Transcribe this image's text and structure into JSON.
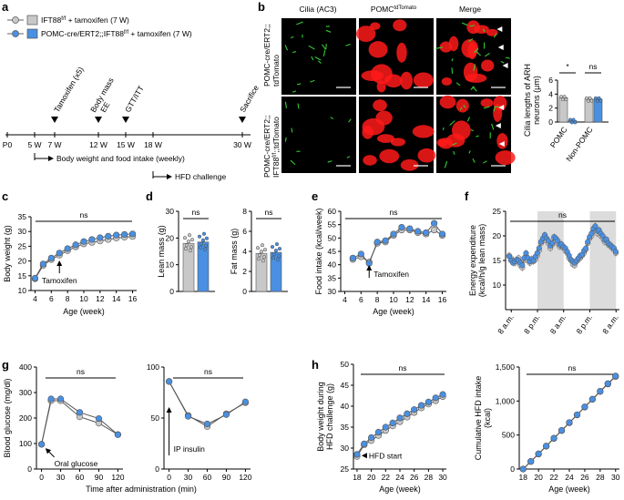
{
  "colors": {
    "gray": "#c8c8c8",
    "blue": "#4a90e2",
    "red": "#ff1a1a",
    "green": "#33cc33"
  },
  "panels": {
    "a": "a",
    "b": "b",
    "c": "c",
    "d": "d",
    "e": "e",
    "f": "f",
    "g": "g",
    "h": "h"
  },
  "legend": {
    "ctrl_prefix": "IFT88",
    "ctrl_sup": "f/f",
    "ctrl_suffix": " + tamoxifen (7 W)",
    "ko_prefix": "POMC-cre/ERT2;;IFT88",
    "ko_sup": "f/f",
    "ko_suffix": " + tamoxifen (7 W)"
  },
  "timeline": {
    "ticks": [
      "P0",
      "5 W",
      "7 W",
      "12 W",
      "15 W",
      "18 W",
      "30 W"
    ],
    "events": [
      "Tamoxifen (x5)",
      "Body mass",
      "EE",
      "GTT/ITT",
      "Sacrifice"
    ],
    "bar1": "Body weight and food intake (weekly)",
    "bar2": "HFD challenge"
  },
  "micro": {
    "col1": "Cilia (AC3)",
    "col2_prefix": "POMC",
    "col2_sup": "tdTomato",
    "col3": "Merge",
    "row1_l1": "POMC-cre/ERT2;;",
    "row1_l2": "tdTomato",
    "row2_l1": "POMC-cre/ERT2;;",
    "row2_l2a": "IFT88",
    "row2_l2sup": "f/f",
    "row2_l2b": ";;tdTomato"
  },
  "chart_data": [
    {
      "id": "b_cilia",
      "type": "bar",
      "ylabel_1": "Cilia lengths of ARH",
      "ylabel_2": "neurons (μm)",
      "ylim": [
        0,
        6
      ],
      "yticks": [
        "0",
        "2",
        "4",
        "6"
      ],
      "categories": [
        "POMC",
        "Non-POMC"
      ],
      "series": [
        {
          "name": "Control",
          "values": [
            3.5,
            3.3
          ]
        },
        {
          "name": "KO",
          "values": [
            0.2,
            3.3
          ]
        }
      ],
      "sig": [
        "*",
        "ns"
      ]
    },
    {
      "id": "c_bw",
      "type": "line",
      "xlabel": "Age (week)",
      "ylabel": "Body weight (g)",
      "xlim": [
        3.5,
        16.5
      ],
      "ylim": [
        10,
        35
      ],
      "xticks": [
        "4",
        "6",
        "8",
        "10",
        "12",
        "14",
        "16"
      ],
      "yticks": [
        "10",
        "15",
        "20",
        "25",
        "30",
        "35"
      ],
      "x": [
        4,
        5,
        6,
        7,
        8,
        9,
        10,
        11,
        12,
        13,
        14,
        15,
        16
      ],
      "series": [
        {
          "name": "Control",
          "values": [
            14,
            18.5,
            20.5,
            22,
            23.5,
            24.8,
            25.8,
            26.3,
            26.8,
            27.3,
            27.8,
            28.1,
            28.3
          ]
        },
        {
          "name": "KO",
          "values": [
            14.2,
            19,
            21,
            22.7,
            24.2,
            25.5,
            26.6,
            27.3,
            27.9,
            28.4,
            28.8,
            29,
            29.2
          ]
        }
      ],
      "annotation": "Tamoxifen",
      "ns": "ns"
    },
    {
      "id": "d_lean",
      "type": "bar",
      "ylabel": "Lean mass (g)",
      "ylim": [
        0,
        30
      ],
      "yticks": [
        "0",
        "10",
        "20",
        "30"
      ],
      "values": [
        18,
        18.5
      ],
      "ns": "ns"
    },
    {
      "id": "d_fat",
      "type": "bar",
      "ylabel": "Fat mass (g)",
      "ylim": [
        0,
        8
      ],
      "yticks": [
        "0",
        "2",
        "4",
        "6",
        "8"
      ],
      "values": [
        3.8,
        3.9
      ],
      "ns": "ns"
    },
    {
      "id": "e_food",
      "type": "line",
      "xlabel": "Age (week)",
      "ylabel": "Food intake (kcal/week)",
      "xlim": [
        3.5,
        16.5
      ],
      "ylim": [
        30,
        60
      ],
      "xticks": [
        "4",
        "6",
        "8",
        "10",
        "12",
        "14",
        "16"
      ],
      "yticks": [
        "30",
        "35",
        "40",
        "45",
        "50",
        "55",
        "60"
      ],
      "x": [
        5,
        6,
        7,
        8,
        9,
        10,
        11,
        12,
        13,
        14,
        15,
        16
      ],
      "series": [
        {
          "name": "Control",
          "values": [
            42,
            43,
            41,
            48,
            48.5,
            51,
            53,
            53,
            52,
            51.5,
            53,
            51
          ]
        },
        {
          "name": "KO",
          "values": [
            42.5,
            44,
            40.5,
            48.5,
            49,
            51.5,
            54,
            53.5,
            52.5,
            52,
            55.5,
            51.5
          ]
        }
      ],
      "annotation": "Tamoxifen",
      "ns": "ns"
    },
    {
      "id": "f_ee",
      "type": "line",
      "ylabel_1": "Energy expenditure",
      "ylabel_2": "(kcal/h/g lean mass)",
      "ylim": [
        5,
        25
      ],
      "yticks": [
        "10",
        "15",
        "20",
        "25"
      ],
      "xticks": [
        "8 a.m.",
        "8 p.m.",
        "8 a.m.",
        "8 p.m.",
        "8 a.m."
      ],
      "series": [
        {
          "name": "Control",
          "values": [
            16,
            15.5,
            15,
            14.5,
            14.8,
            15.5,
            14,
            13.5,
            15,
            16,
            15,
            14.5,
            15,
            14.8,
            15.2,
            16,
            17,
            18.5,
            19,
            20,
            19,
            18.5,
            17.5,
            18.2,
            19.5,
            19,
            18.5,
            17.8,
            18,
            17.5,
            17,
            16.5,
            15.5,
            15,
            14.2,
            14,
            14.8,
            15.2,
            15.5,
            16,
            16.5,
            17.2,
            18.5,
            19.5,
            20,
            21,
            21.5,
            20.5,
            21,
            20,
            19.5,
            18.8,
            19,
            18.2,
            18,
            17.5,
            17.2,
            16.5
          ]
        },
        {
          "name": "KO",
          "values": [
            15.8,
            15,
            14.5,
            14.8,
            15.2,
            15,
            14.5,
            14,
            15.5,
            16.5,
            15.5,
            14.8,
            15.3,
            15,
            15.8,
            16.5,
            17.5,
            18.8,
            19.5,
            20.2,
            19.5,
            19,
            18,
            18.5,
            19.8,
            19.5,
            19,
            18.2,
            18.3,
            17.8,
            17.5,
            16.8,
            16,
            15.2,
            14.8,
            14.5,
            15,
            15.5,
            16,
            16.2,
            17,
            17.5,
            18.8,
            19.8,
            20.5,
            21.5,
            22,
            21,
            21.2,
            20.5,
            20,
            19.2,
            19.3,
            18.5,
            18.2,
            17.8,
            17.5,
            16.8
          ]
        }
      ],
      "ns": "ns"
    },
    {
      "id": "g_gtt",
      "type": "line",
      "ylabel": "Blood glucose (mg/dl)",
      "xlim": [
        -8,
        128
      ],
      "ylim": [
        0,
        400
      ],
      "xticks": [
        "0",
        "30",
        "60",
        "90",
        "120"
      ],
      "yticks": [
        "0",
        "100",
        "200",
        "300",
        "400"
      ],
      "x": [
        0,
        15,
        30,
        60,
        90,
        120
      ],
      "series": [
        {
          "name": "Control",
          "values": [
            97,
            268,
            268,
            205,
            180,
            135
          ]
        },
        {
          "name": "KO",
          "values": [
            97,
            275,
            275,
            222,
            198,
            135
          ]
        }
      ],
      "annotation": "Oral glucose",
      "ns": "ns"
    },
    {
      "id": "g_itt",
      "type": "line",
      "xlim": [
        -8,
        128
      ],
      "ylim": [
        0,
        120
      ],
      "xticks": [
        "0",
        "30",
        "60",
        "90",
        "120"
      ],
      "yticks": [
        "0",
        "50",
        "100"
      ],
      "x": [
        0,
        30,
        60,
        90,
        120
      ],
      "series": [
        {
          "name": "Control",
          "values": [
            103,
            63,
            50,
            65,
            78
          ]
        },
        {
          "name": "KO",
          "values": [
            103,
            62,
            53,
            64,
            79
          ]
        }
      ],
      "annotation": "IP insulin",
      "ns": "ns"
    },
    {
      "id": "g_xlabel",
      "xlabel": "Time after administration (min)"
    },
    {
      "id": "h_bw",
      "type": "line",
      "xlabel": "Age (week)",
      "ylabel_1": "Body weight during",
      "ylabel_2": "HFD challenge (g)",
      "xlim": [
        17.5,
        30.5
      ],
      "ylim": [
        25,
        50
      ],
      "xticks": [
        "18",
        "20",
        "22",
        "24",
        "26",
        "28",
        "30"
      ],
      "yticks": [
        "25",
        "30",
        "35",
        "40",
        "45",
        "50"
      ],
      "x": [
        18,
        19,
        20,
        21,
        22,
        23,
        24,
        25,
        26,
        27,
        28,
        29,
        30
      ],
      "series": [
        {
          "name": "Control",
          "values": [
            28,
            30.8,
            31.8,
            33,
            34.2,
            35.3,
            36.3,
            37.4,
            38.5,
            39.6,
            40.5,
            41.3,
            42.3
          ]
        },
        {
          "name": "KO",
          "values": [
            28.5,
            31,
            32.5,
            33.8,
            35,
            36,
            37.2,
            38.2,
            39.2,
            40.2,
            41,
            42,
            42.8
          ]
        }
      ],
      "annotation": "HFD start",
      "ns": "ns"
    },
    {
      "id": "h_cum",
      "type": "line",
      "xlabel": "Age (week)",
      "ylabel_1": "Cumulative HFD intake",
      "ylabel_2": "(kcal)",
      "xlim": [
        17.5,
        30.5
      ],
      "ylim": [
        0,
        1500
      ],
      "xticks": [
        "18",
        "20",
        "22",
        "24",
        "26",
        "28",
        "30"
      ],
      "yticks": [
        "0",
        "500",
        "1,000",
        "1,500"
      ],
      "x": [
        18,
        19,
        20,
        21,
        22,
        23,
        24,
        25,
        26,
        27,
        28,
        29,
        30
      ],
      "series": [
        {
          "name": "Control",
          "values": [
            0,
            110,
            220,
            335,
            450,
            565,
            680,
            795,
            910,
            1025,
            1140,
            1250,
            1360
          ]
        },
        {
          "name": "KO",
          "values": [
            0,
            112,
            224,
            338,
            454,
            568,
            684,
            798,
            914,
            1028,
            1144,
            1256,
            1368
          ]
        }
      ],
      "ns": "ns"
    }
  ]
}
